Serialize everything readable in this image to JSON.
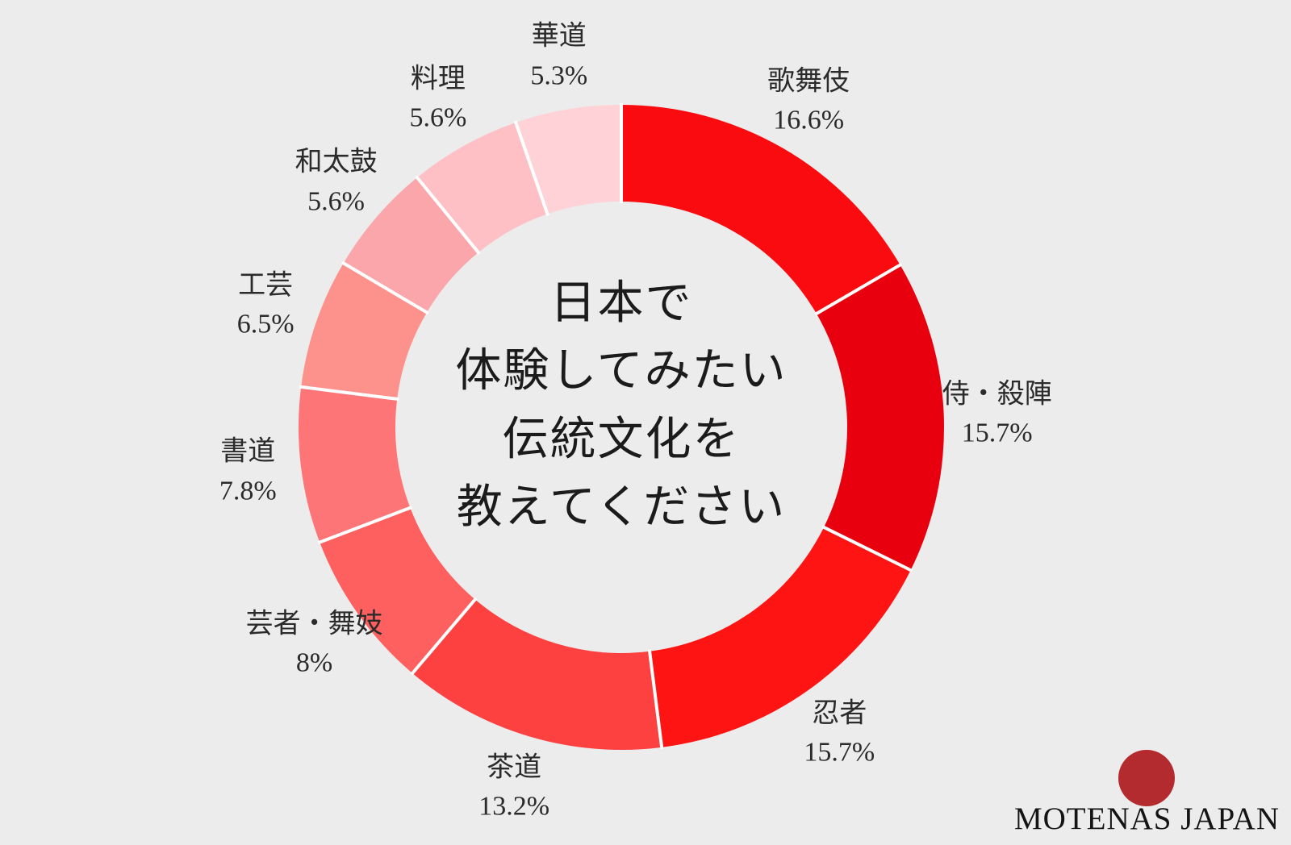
{
  "page": {
    "background_color": "#ececec"
  },
  "chart_data": {
    "type": "pie",
    "subtype": "donut",
    "title": "日本で体験してみたい伝統文化を教えてください",
    "center_title_lines": [
      "日本で",
      "体験してみたい",
      "伝統文化を",
      "教えてください"
    ],
    "start_angle_deg": 0,
    "direction": "clockwise",
    "legend_position": "around-slices",
    "separator_color": "#ffffff",
    "segments": [
      {
        "label": "歌舞伎",
        "value": 16.6,
        "percent_label": "16.6%",
        "color": "#f90b10"
      },
      {
        "label": "侍・殺陣",
        "value": 15.7,
        "percent_label": "15.7%",
        "color": "#e8000f"
      },
      {
        "label": "忍者",
        "value": 15.7,
        "percent_label": "15.7%",
        "color": "#fe1412"
      },
      {
        "label": "茶道",
        "value": 13.2,
        "percent_label": "13.2%",
        "color": "#fd4040"
      },
      {
        "label": "芸者・舞妓",
        "value": 8,
        "percent_label": "8%",
        "color": "#fe5f5f"
      },
      {
        "label": "書道",
        "value": 7.8,
        "percent_label": "7.8%",
        "color": "#fd7577"
      },
      {
        "label": "工芸",
        "value": 6.5,
        "percent_label": "6.5%",
        "color": "#fd918c"
      },
      {
        "label": "和太鼓",
        "value": 5.6,
        "percent_label": "5.6%",
        "color": "#faa6ab"
      },
      {
        "label": "料理",
        "value": 5.6,
        "percent_label": "5.6%",
        "color": "#fec0c5"
      },
      {
        "label": "華道",
        "value": 5.3,
        "percent_label": "5.3%",
        "color": "#fed2d6"
      }
    ]
  },
  "branding": {
    "logo_text": "MOTENAS JAPAN",
    "logo_circle_color": "#b32b2f"
  }
}
